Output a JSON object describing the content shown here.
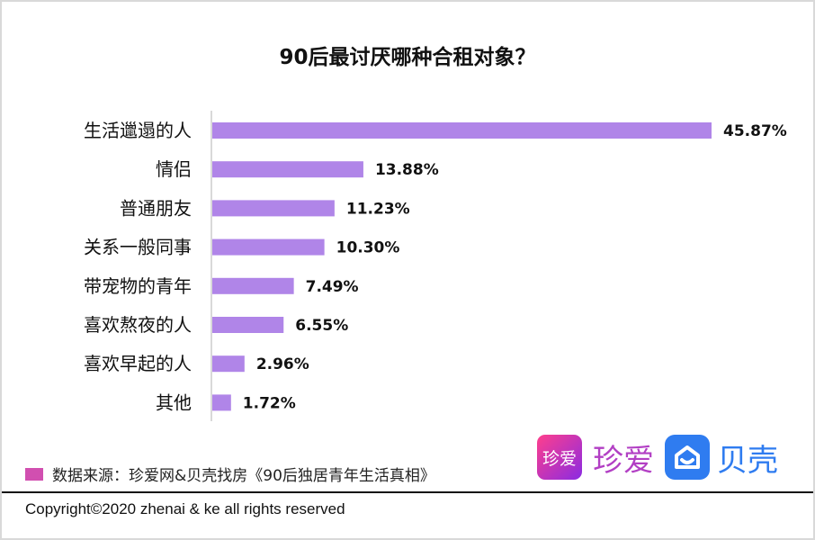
{
  "chart_data": {
    "type": "bar",
    "orientation": "horizontal",
    "title": "90后最讨厌哪种合租对象？",
    "categories": [
      "生活邋遢的人",
      "情侣",
      "普通朋友",
      "关系一般同事",
      "带宠物的青年",
      "喜欢熬夜的人",
      "喜欢早起的人",
      "其他"
    ],
    "values": [
      45.87,
      13.88,
      11.23,
      10.3,
      7.49,
      6.55,
      2.96,
      1.72
    ],
    "data_labels": [
      "45.87%",
      "13.88%",
      "11.23%",
      "10.30%",
      "7.49%",
      "6.55%",
      "2.96%",
      "1.72%"
    ],
    "xlim": [
      0,
      46
    ],
    "grid": false,
    "bar_color": "#B085E8"
  },
  "source": {
    "text": "数据来源：珍爱网&贝壳找房《90后独居青年生活真相》",
    "color": "#D14FB0"
  },
  "logos": {
    "zhenai_icon": "珍爱",
    "zhenai_text": "珍爱",
    "ke_text": "贝壳"
  },
  "footer": {
    "copyright": "Copyright©2020 zhenai & ke all rights reserved"
  }
}
